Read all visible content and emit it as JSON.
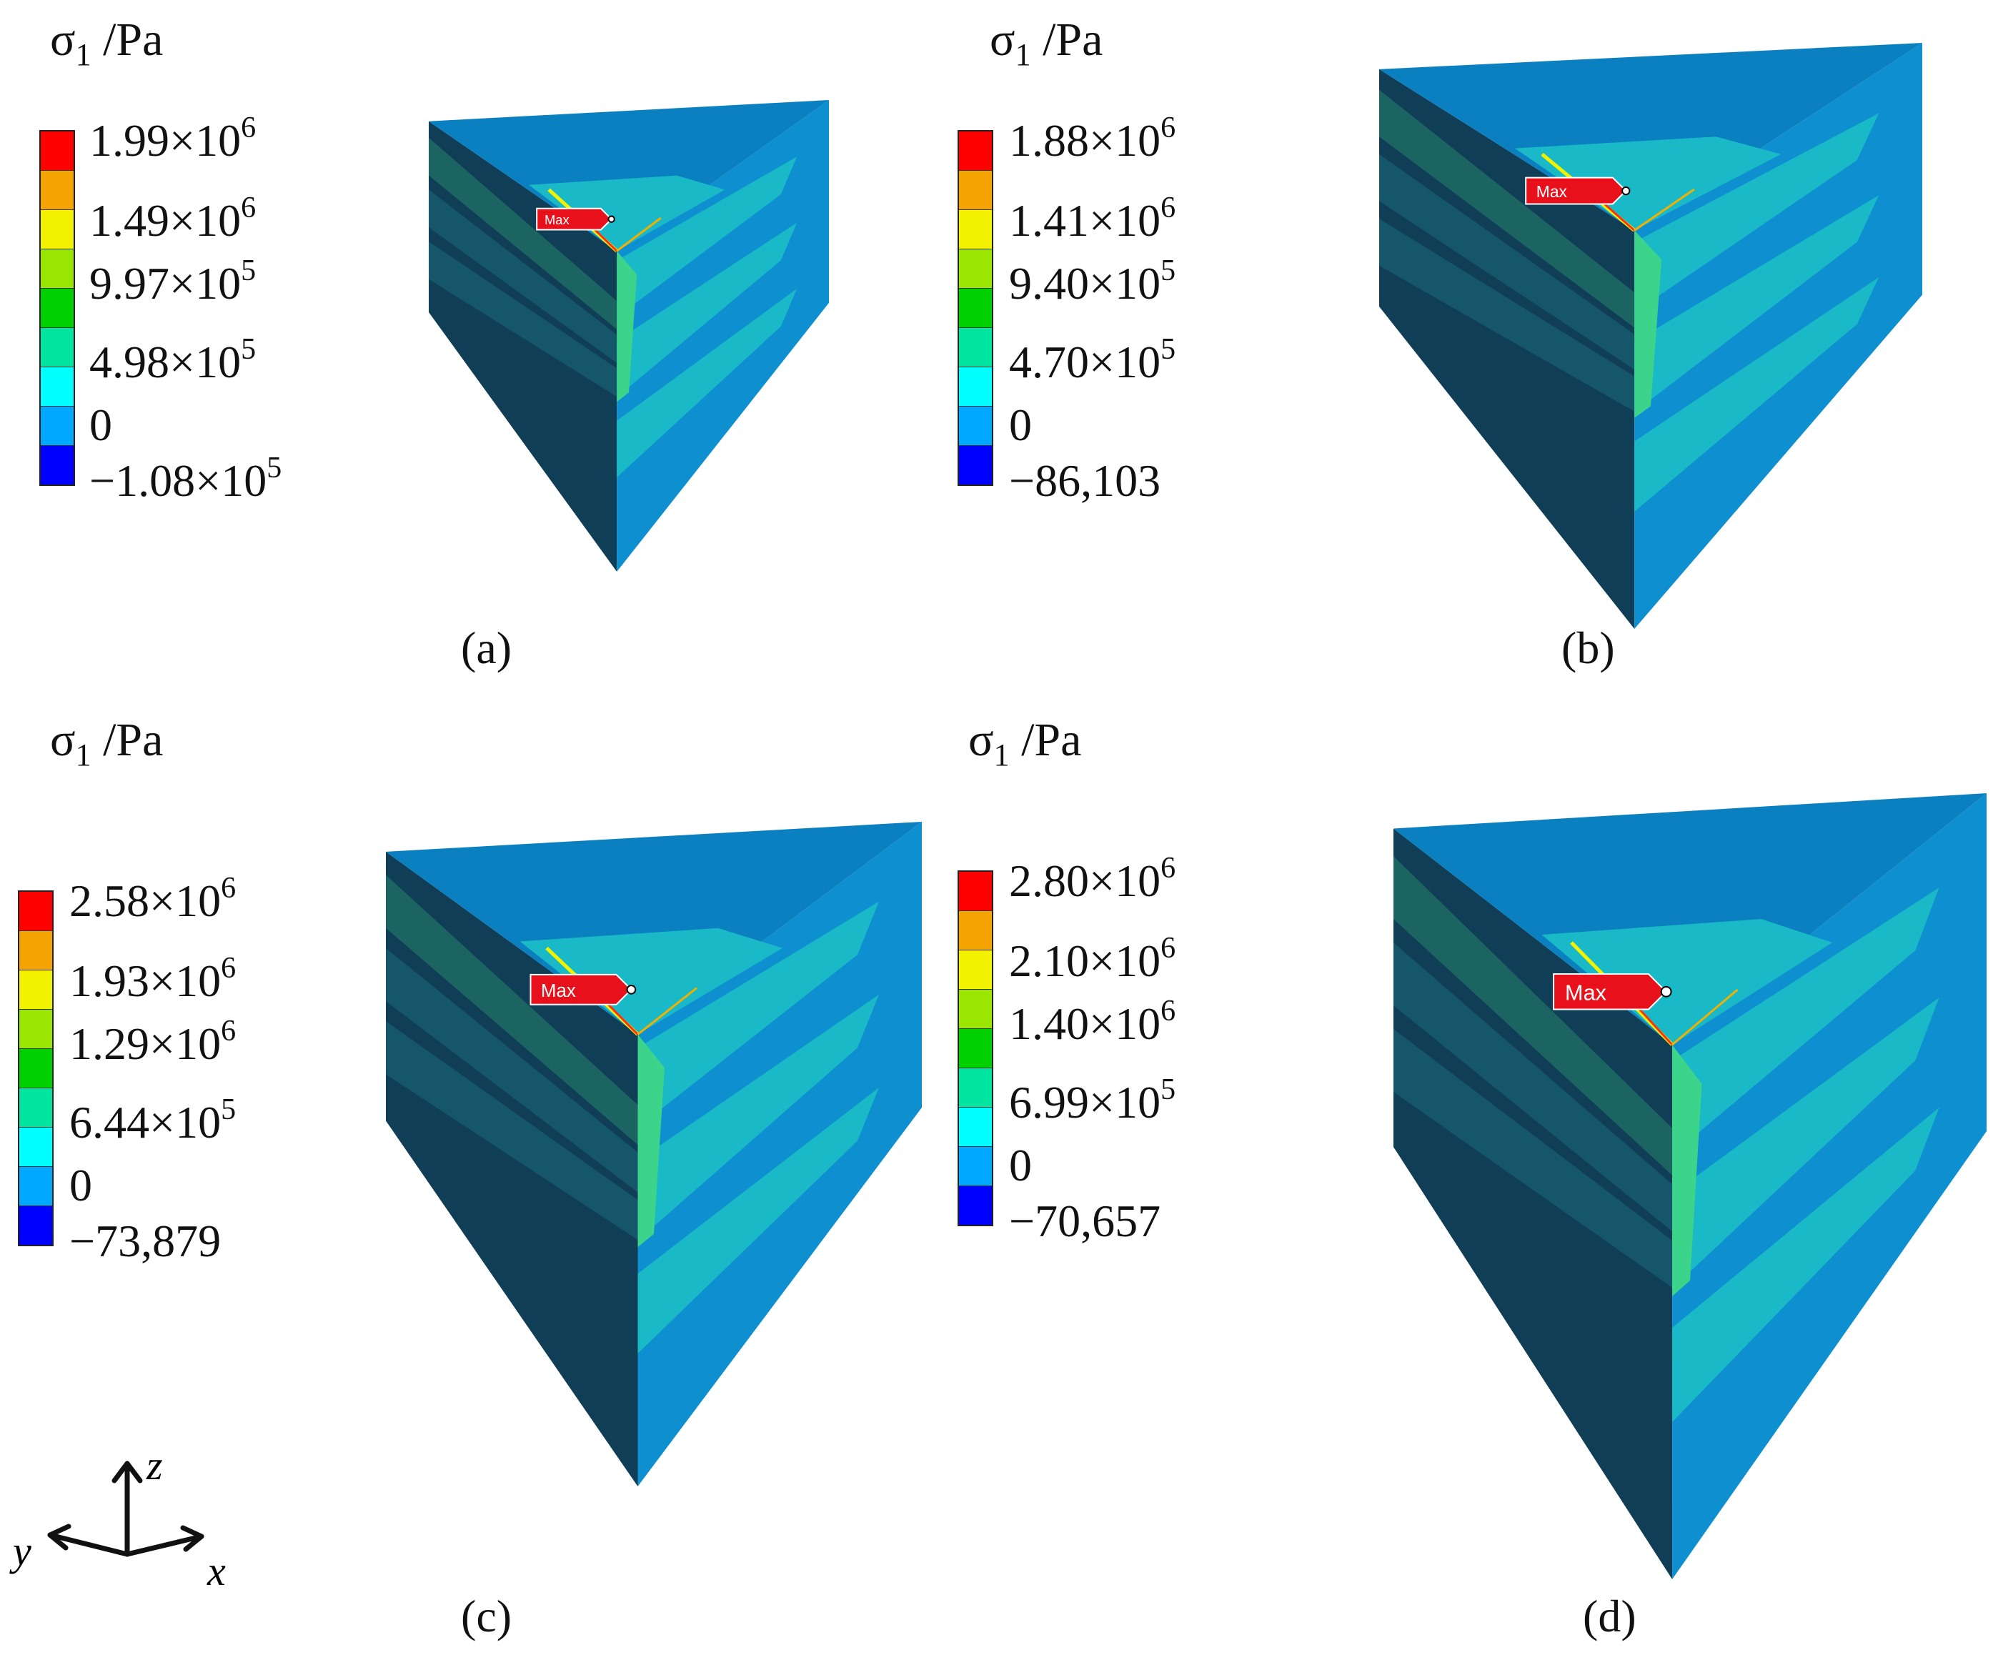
{
  "legend_colors": [
    "#ff0000",
    "#f5a300",
    "#f2f200",
    "#9be600",
    "#00d000",
    "#00e6a0",
    "#00ffff",
    "#00a8ff",
    "#0000ff"
  ],
  "face_colors": {
    "top": "#0b80c0",
    "left_dark": "#0f3e56",
    "left_mid": "#165a6e",
    "left_band": "#1f6b63",
    "right_base": "#0e8fd0",
    "right_cyan": "#19b9c8",
    "right_green": "#3cd38b",
    "green_core": "#2fbf2f",
    "tag": "#e8101a"
  },
  "max_label": "Max",
  "panels": [
    {
      "title_symbol": "σ",
      "title_sub": "1",
      "title_unit": " /Pa",
      "caption": "(a)",
      "legend_labels": [
        {
          "mant": "1.99×10",
          "exp": "6"
        },
        {
          "mant": "1.49×10",
          "exp": "6"
        },
        {
          "mant": "9.97×10",
          "exp": "5"
        },
        {
          "mant": "4.98×10",
          "exp": "5"
        },
        {
          "mant": "0",
          "exp": ""
        },
        {
          "mant": "−1.08×10",
          "exp": "5"
        }
      ]
    },
    {
      "title_symbol": "σ",
      "title_sub": "1",
      "title_unit": " /Pa",
      "caption": "(b)",
      "legend_labels": [
        {
          "mant": "1.88×10",
          "exp": "6"
        },
        {
          "mant": "1.41×10",
          "exp": "6"
        },
        {
          "mant": "9.40×10",
          "exp": "5"
        },
        {
          "mant": "4.70×10",
          "exp": "5"
        },
        {
          "mant": "0",
          "exp": ""
        },
        {
          "mant": "−86,103",
          "exp": ""
        }
      ]
    },
    {
      "title_symbol": "σ",
      "title_sub": "1",
      "title_unit": " /Pa",
      "caption": "(c)",
      "legend_labels": [
        {
          "mant": "2.58×10",
          "exp": "6"
        },
        {
          "mant": "1.93×10",
          "exp": "6"
        },
        {
          "mant": "1.29×10",
          "exp": "6"
        },
        {
          "mant": "6.44×10",
          "exp": "5"
        },
        {
          "mant": "0",
          "exp": ""
        },
        {
          "mant": "−73,879",
          "exp": ""
        }
      ]
    },
    {
      "title_symbol": "σ",
      "title_sub": "1",
      "title_unit": " /Pa",
      "caption": "(d)",
      "legend_labels": [
        {
          "mant": "2.80×10",
          "exp": "6"
        },
        {
          "mant": "2.10×10",
          "exp": "6"
        },
        {
          "mant": "1.40×10",
          "exp": "6"
        },
        {
          "mant": "6.99×10",
          "exp": "5"
        },
        {
          "mant": "0",
          "exp": ""
        },
        {
          "mant": "−70,657",
          "exp": ""
        }
      ]
    }
  ],
  "axes": {
    "z": "z",
    "y": "y",
    "x": "x"
  }
}
